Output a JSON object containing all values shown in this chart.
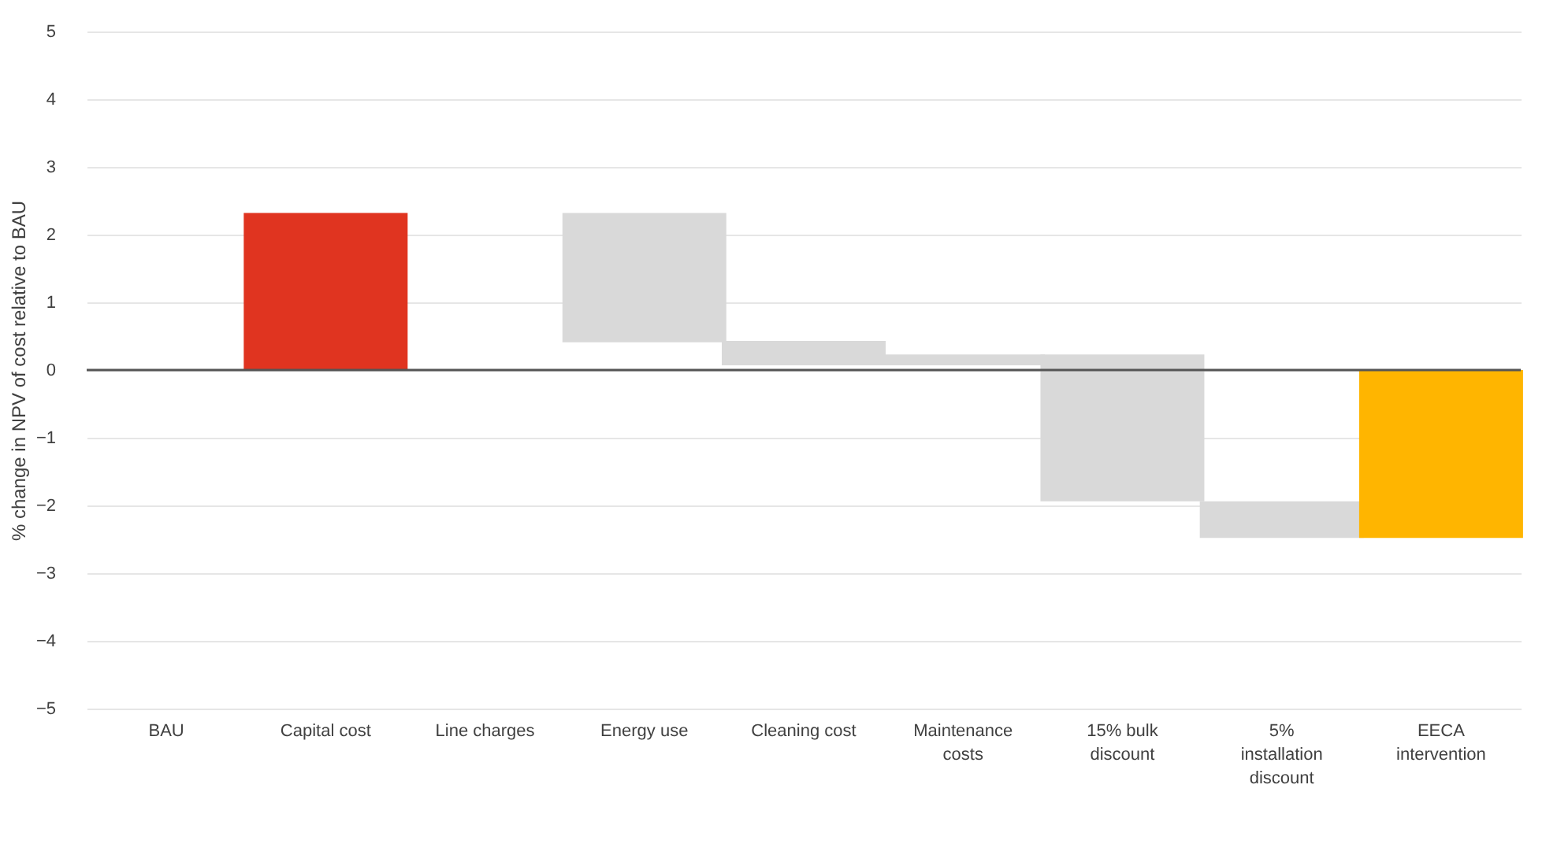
{
  "chart_data": {
    "type": "bar",
    "ylabel": "% change in NPV of cost relative to BAU",
    "categories": [
      "BAU",
      "Capital cost",
      "Line charges",
      "Energy use",
      "Cleaning cost",
      "Maintenance costs",
      "15% bulk discount",
      "5% installation discount",
      "EECA intervention"
    ],
    "values": [
      0,
      2.32,
      0,
      -1.91,
      -0.36,
      0.16,
      -2.17,
      -0.54,
      -2.48
    ],
    "base": [
      null,
      0,
      null,
      2.32,
      0.43,
      0.07,
      0.23,
      -1.94,
      0
    ],
    "colors": [
      "#d9d9d9",
      "#e03420",
      "#d9d9d9",
      "#d9d9d9",
      "#d9d9d9",
      "#d9d9d9",
      "#d9d9d9",
      "#d9d9d9",
      "#ffb500"
    ],
    "ylim": [
      -5,
      5
    ],
    "yticks": [
      -5,
      -4,
      -3,
      -2,
      -1,
      0,
      1,
      2,
      3,
      4,
      5
    ],
    "ref_lines": [
      {
        "axis": "y",
        "value": 0,
        "color": "#555555"
      }
    ],
    "grid": "y"
  }
}
